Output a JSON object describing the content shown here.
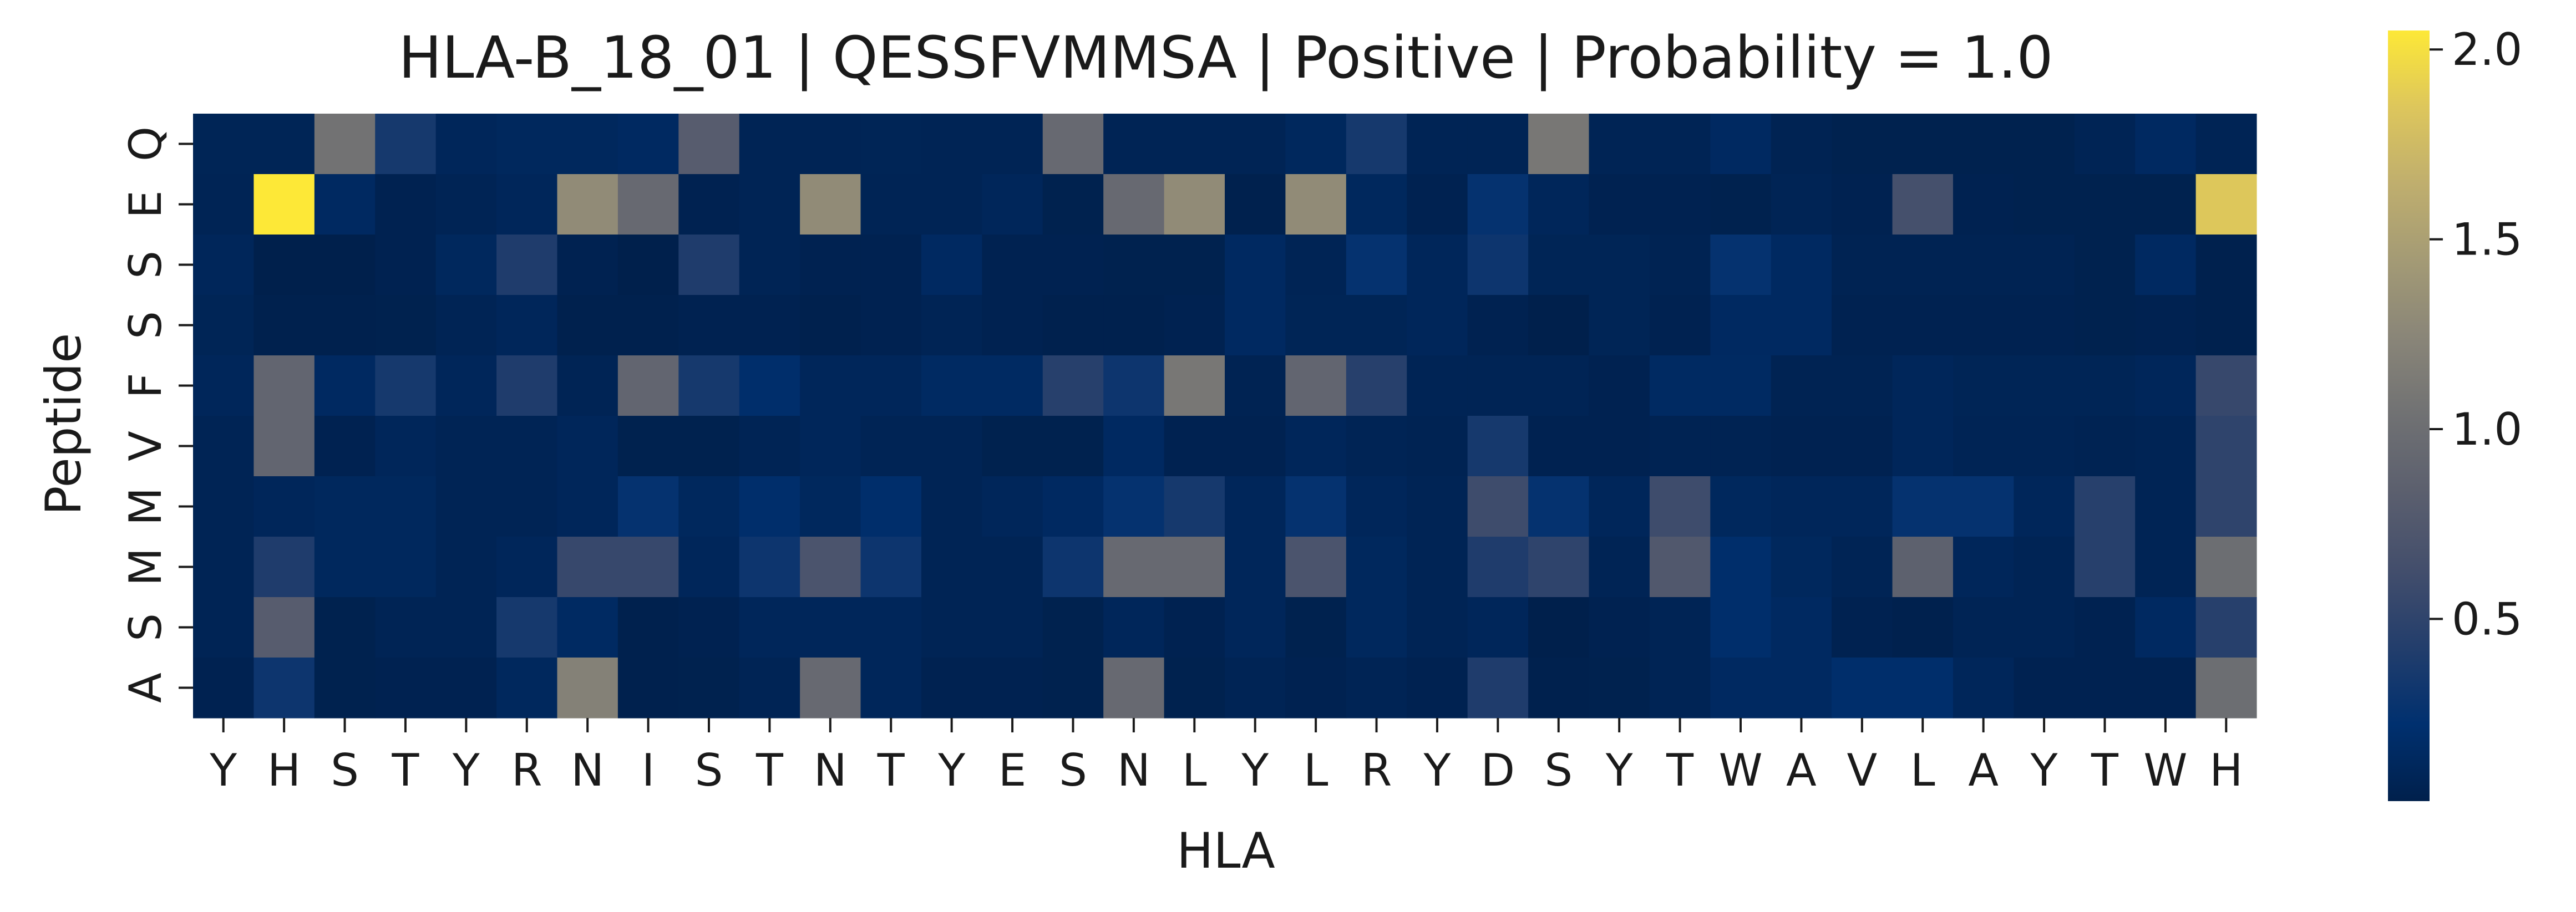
{
  "chart_data": {
    "type": "heatmap",
    "title": "HLA-B_18_01 | QESSFVMMSA | Positive | Probability = 1.0",
    "xlabel": "HLA",
    "ylabel": "Peptide",
    "x_categories": [
      "Y",
      "H",
      "S",
      "T",
      "Y",
      "R",
      "N",
      "I",
      "S",
      "T",
      "N",
      "T",
      "Y",
      "E",
      "S",
      "N",
      "L",
      "Y",
      "L",
      "R",
      "Y",
      "D",
      "S",
      "Y",
      "T",
      "W",
      "A",
      "V",
      "L",
      "A",
      "Y",
      "T",
      "W",
      "H"
    ],
    "y_categories": [
      "Q",
      "E",
      "S",
      "S",
      "F",
      "V",
      "M",
      "M",
      "S",
      "A"
    ],
    "colormap": "cividis",
    "colorbar": {
      "range": [
        0.02,
        2.05
      ],
      "ticks": [
        0.5,
        1.0,
        1.5,
        2.0
      ],
      "tick_labels": [
        "0.5",
        "1.0",
        "1.5",
        "2.0"
      ]
    },
    "grid": false,
    "values": [
      [
        0.08,
        0.08,
        1.05,
        0.35,
        0.1,
        0.12,
        0.12,
        0.14,
        0.8,
        0.07,
        0.07,
        0.08,
        0.07,
        0.07,
        0.95,
        0.07,
        0.07,
        0.07,
        0.12,
        0.35,
        0.07,
        0.07,
        1.1,
        0.07,
        0.07,
        0.14,
        0.06,
        0.04,
        0.04,
        0.04,
        0.04,
        0.07,
        0.14,
        0.07
      ],
      [
        0.07,
        2.05,
        0.14,
        0.05,
        0.07,
        0.1,
        1.3,
        0.95,
        0.05,
        0.07,
        1.3,
        0.07,
        0.07,
        0.1,
        0.04,
        0.95,
        1.3,
        0.03,
        1.3,
        0.12,
        0.05,
        0.25,
        0.1,
        0.05,
        0.05,
        0.04,
        0.07,
        0.05,
        0.65,
        0.05,
        0.04,
        0.04,
        0.04,
        1.85
      ],
      [
        0.1,
        0.02,
        0.02,
        0.05,
        0.12,
        0.4,
        0.05,
        0.02,
        0.4,
        0.07,
        0.05,
        0.05,
        0.14,
        0.05,
        0.05,
        0.04,
        0.04,
        0.14,
        0.07,
        0.25,
        0.1,
        0.3,
        0.08,
        0.08,
        0.06,
        0.25,
        0.14,
        0.06,
        0.06,
        0.06,
        0.06,
        0.04,
        0.14,
        0.03
      ],
      [
        0.08,
        0.03,
        0.03,
        0.04,
        0.07,
        0.1,
        0.03,
        0.03,
        0.05,
        0.05,
        0.03,
        0.05,
        0.07,
        0.05,
        0.03,
        0.03,
        0.05,
        0.14,
        0.08,
        0.08,
        0.1,
        0.05,
        0.02,
        0.08,
        0.05,
        0.14,
        0.14,
        0.05,
        0.05,
        0.05,
        0.05,
        0.04,
        0.05,
        0.03
      ],
      [
        0.1,
        0.9,
        0.14,
        0.35,
        0.1,
        0.4,
        0.07,
        0.9,
        0.35,
        0.2,
        0.1,
        0.1,
        0.15,
        0.15,
        0.45,
        0.3,
        1.1,
        0.06,
        0.9,
        0.45,
        0.07,
        0.07,
        0.07,
        0.05,
        0.15,
        0.15,
        0.06,
        0.06,
        0.1,
        0.08,
        0.08,
        0.08,
        0.1,
        0.55
      ],
      [
        0.07,
        0.9,
        0.05,
        0.1,
        0.07,
        0.07,
        0.1,
        0.04,
        0.04,
        0.07,
        0.1,
        0.07,
        0.07,
        0.04,
        0.04,
        0.14,
        0.05,
        0.05,
        0.1,
        0.07,
        0.06,
        0.35,
        0.05,
        0.05,
        0.06,
        0.06,
        0.05,
        0.05,
        0.1,
        0.07,
        0.07,
        0.06,
        0.07,
        0.5
      ],
      [
        0.07,
        0.1,
        0.12,
        0.12,
        0.07,
        0.07,
        0.1,
        0.25,
        0.12,
        0.2,
        0.12,
        0.2,
        0.07,
        0.1,
        0.14,
        0.25,
        0.35,
        0.1,
        0.25,
        0.1,
        0.07,
        0.6,
        0.25,
        0.1,
        0.6,
        0.12,
        0.1,
        0.1,
        0.25,
        0.25,
        0.1,
        0.45,
        0.07,
        0.5
      ],
      [
        0.07,
        0.4,
        0.12,
        0.12,
        0.07,
        0.1,
        0.55,
        0.55,
        0.1,
        0.3,
        0.7,
        0.3,
        0.07,
        0.07,
        0.3,
        0.95,
        0.95,
        0.1,
        0.7,
        0.12,
        0.07,
        0.4,
        0.5,
        0.07,
        0.75,
        0.2,
        0.12,
        0.07,
        0.85,
        0.1,
        0.07,
        0.45,
        0.07,
        1.0
      ],
      [
        0.07,
        0.8,
        0.04,
        0.07,
        0.07,
        0.35,
        0.15,
        0.03,
        0.05,
        0.1,
        0.1,
        0.1,
        0.07,
        0.07,
        0.04,
        0.1,
        0.05,
        0.1,
        0.04,
        0.12,
        0.07,
        0.1,
        0.02,
        0.05,
        0.07,
        0.2,
        0.14,
        0.05,
        0.03,
        0.07,
        0.07,
        0.05,
        0.14,
        0.45
      ],
      [
        0.05,
        0.3,
        0.04,
        0.05,
        0.05,
        0.12,
        1.2,
        0.03,
        0.04,
        0.07,
        0.95,
        0.1,
        0.05,
        0.05,
        0.04,
        0.95,
        0.04,
        0.07,
        0.05,
        0.07,
        0.05,
        0.4,
        0.03,
        0.04,
        0.07,
        0.14,
        0.14,
        0.2,
        0.2,
        0.1,
        0.05,
        0.05,
        0.05,
        1.0
      ]
    ]
  }
}
